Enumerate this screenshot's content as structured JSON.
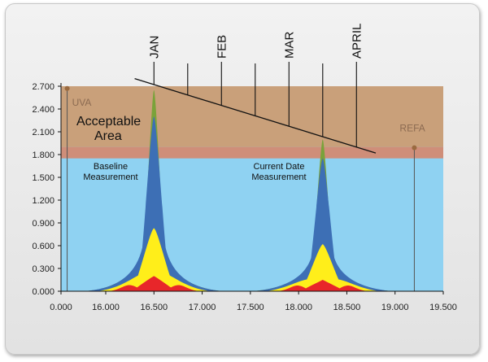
{
  "chart_data": {
    "type": "area",
    "x_ticks": [
      "0.000",
      "16.000",
      "16.500",
      "17.000",
      "17.500",
      "18.000",
      "18.500",
      "19.000",
      "19.500"
    ],
    "y_ticks": [
      "0.000",
      "0.300",
      "0.600",
      "0.900",
      "1.200",
      "1.500",
      "1.800",
      "2.100",
      "2.400",
      "2.700"
    ],
    "ylim": [
      0,
      2.7
    ],
    "bands": {
      "acceptable_top": 2.7,
      "acceptable_bottom": 1.9,
      "red_band_bottom": 1.75
    },
    "zone_label": {
      "line1": "Acceptable",
      "line2": "Area"
    },
    "markers": [
      {
        "label": "UVA",
        "x": 15.6,
        "y": 2.67
      },
      {
        "label": "REFA",
        "x": 19.2,
        "y": 1.89
      }
    ],
    "peaks": [
      {
        "label_line1": "Baseline",
        "label_line2": "Measurement",
        "x": 16.5,
        "top": 2.65,
        "blue": 2.3,
        "yellow": 0.83,
        "red": 0.2
      },
      {
        "label_line1": "Current Date",
        "label_line2": "Measurement",
        "x": 18.25,
        "top": 2.0,
        "blue": 1.75,
        "yellow": 0.62,
        "red": 0.15
      }
    ],
    "trend_line": {
      "start": [
        16.3,
        2.8
      ],
      "end": [
        18.8,
        1.82
      ]
    },
    "months": [
      {
        "label": "JAN",
        "x": 16.5
      },
      {
        "label": "FEB",
        "x": 17.2
      },
      {
        "label": "MAR",
        "x": 17.9
      },
      {
        "label": "APRIL",
        "x": 18.6
      }
    ],
    "colors": {
      "acceptable": "#c9a07a",
      "red_band": "#cf8e79",
      "background": "#8fd2f2",
      "blue": "#3d6fb5",
      "green": "#7aa23a",
      "yellow": "#ffee1a",
      "red": "#e8262a"
    }
  }
}
